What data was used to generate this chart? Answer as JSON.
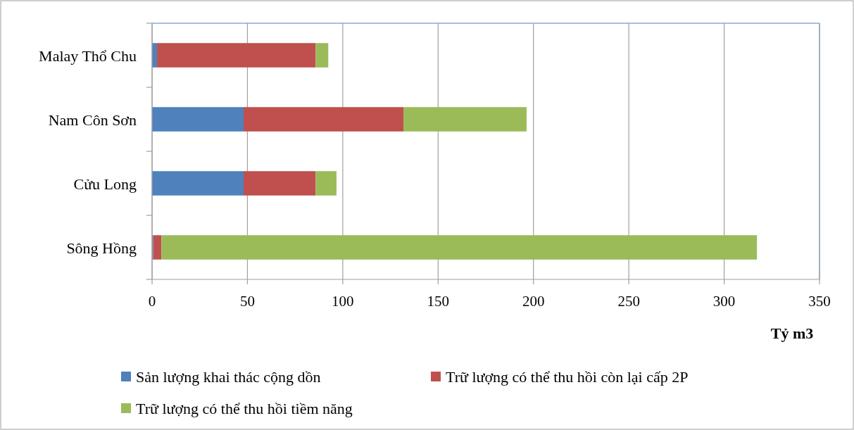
{
  "chart_data": {
    "type": "bar",
    "orientation": "horizontal",
    "stacked": true,
    "xlabel": "Tỷ m3",
    "categories": [
      "Malay Thổ Chu",
      "Nam Côn Sơn",
      "Cửu Long",
      "Sông Hồng"
    ],
    "series": [
      {
        "name": "Sản lượng khai thác cộng dồn",
        "color": "#4f81bd",
        "values": [
          2.6,
          48,
          48,
          0.6
        ]
      },
      {
        "name": "Trữ lượng có thể thu hồi còn lại cấp 2P",
        "color": "#c0504d",
        "values": [
          83.2,
          83.8,
          37.8,
          4.3
        ]
      },
      {
        "name": "Trữ lượng có thể thu hồi tiềm năng",
        "color": "#9bbb59",
        "values": [
          6.6,
          64.6,
          10.9,
          312.3
        ]
      }
    ],
    "xlim": [
      0,
      350
    ],
    "xticks": [
      0,
      50,
      100,
      150,
      200,
      250,
      300,
      350
    ],
    "grid": "x",
    "legend": "bottom"
  }
}
